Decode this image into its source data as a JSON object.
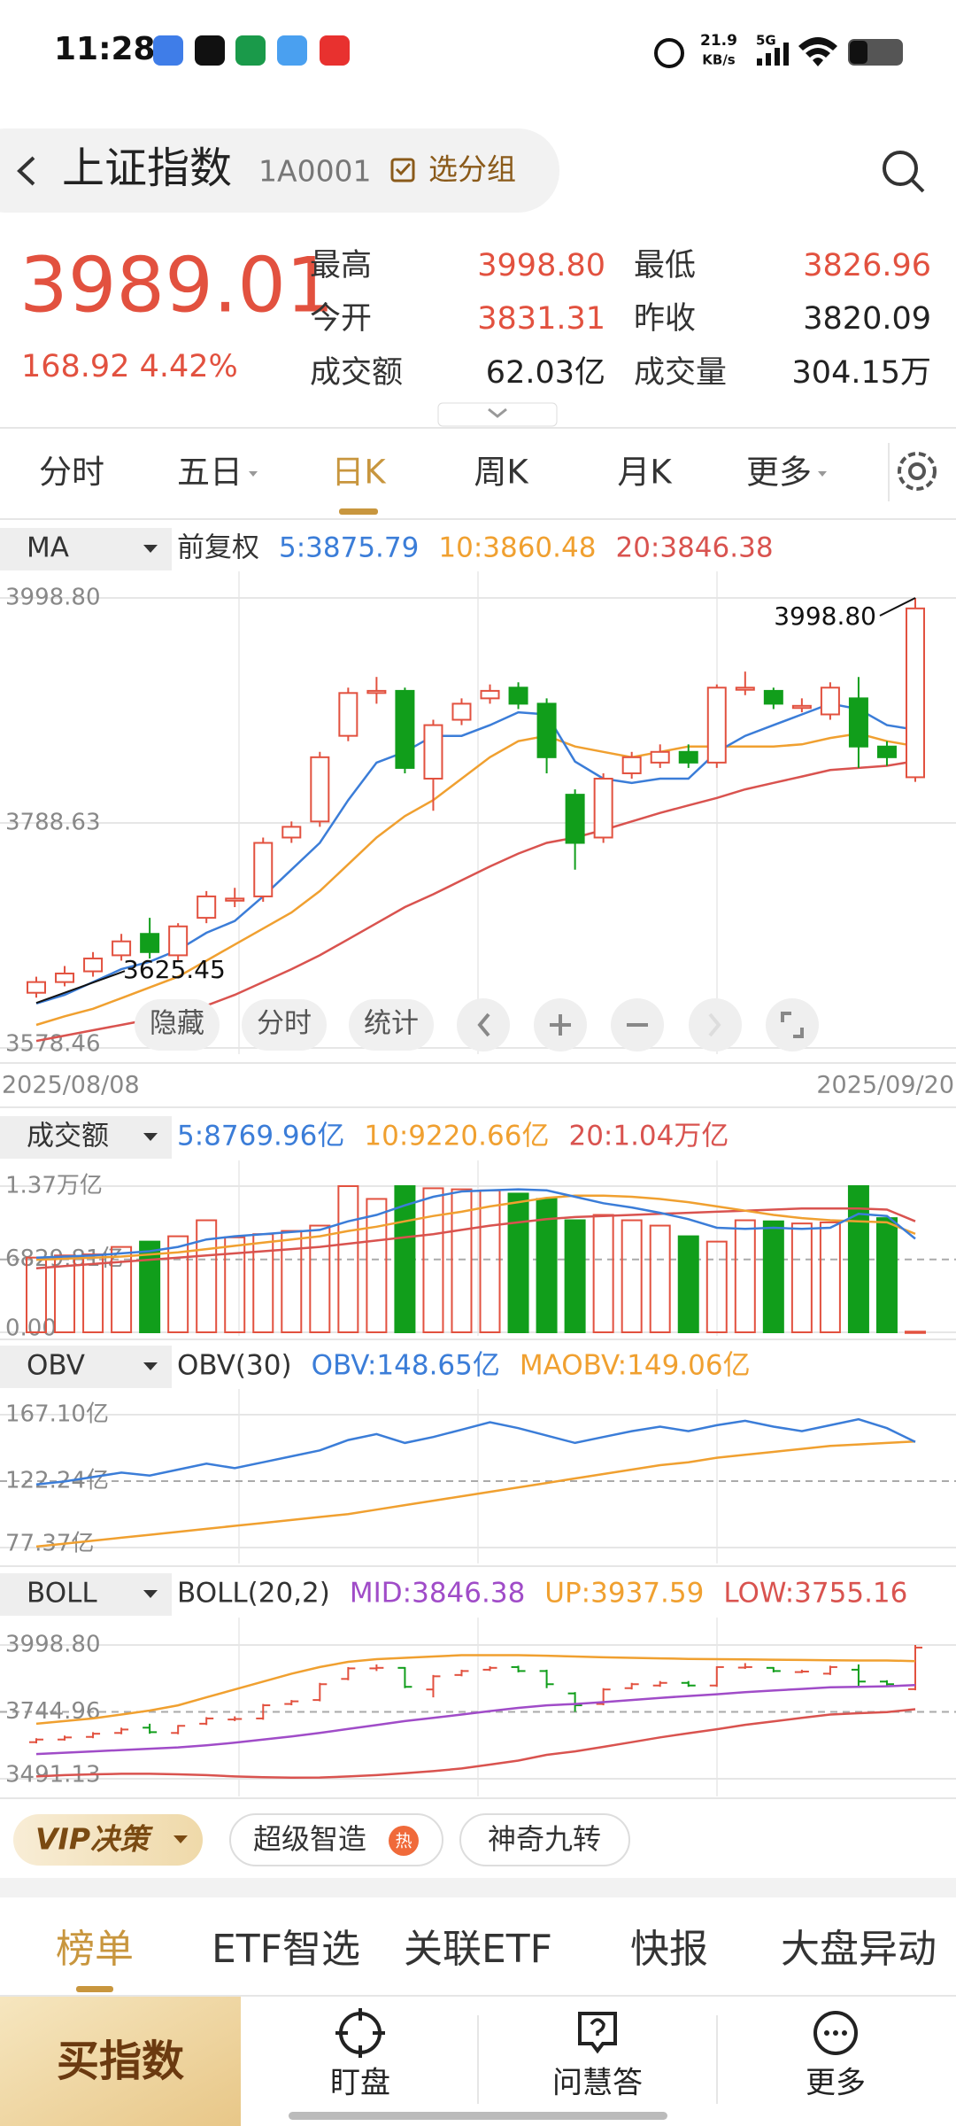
{
  "status": {
    "time": "11:28",
    "speed": "21.9",
    "speed_unit": "KB/s",
    "network": "5G"
  },
  "header": {
    "title": "上证指数",
    "code": "1A0001",
    "group": "选分组"
  },
  "quote": {
    "price": "3989.01",
    "change": "168.92 4.42%",
    "stats": [
      {
        "label": "最高",
        "value": "3998.80",
        "color": "#e2513f"
      },
      {
        "label": "最低",
        "value": "3826.96",
        "color": "#e2513f"
      },
      {
        "label": "今开",
        "value": "3831.31",
        "color": "#e2513f"
      },
      {
        "label": "昨收",
        "value": "3820.09",
        "color": "#222222"
      },
      {
        "label": "成交额",
        "value": "62.03亿",
        "color": "#222222"
      },
      {
        "label": "成交量",
        "value": "304.15万",
        "color": "#222222"
      }
    ]
  },
  "tabs": {
    "items": [
      "分时",
      "五日",
      "日K",
      "周K",
      "月K",
      "更多"
    ],
    "active": 2
  },
  "kline": {
    "label": "MA",
    "adjust": "前复权",
    "legend": [
      {
        "text": "5:3875.79",
        "color": "#3b7dd8"
      },
      {
        "text": "10:3860.48",
        "color": "#f0a030"
      },
      {
        "text": "20:3846.38",
        "color": "#d9534f"
      }
    ],
    "ylim": [
      3578.46,
      3998.8
    ],
    "yticks": [
      {
        "value": 3998.8,
        "label": "3998.80"
      },
      {
        "value": 3788.63,
        "label": "3788.63"
      },
      {
        "value": 3578.46,
        "label": "3578.46"
      }
    ],
    "dates": [
      "2025/08/08",
      "2025/09/20"
    ],
    "annotations": {
      "high": "3998.80",
      "low": "3625.45"
    },
    "open": [
      3630,
      3640,
      3650,
      3665,
      3685,
      3665,
      3700,
      3716,
      3720,
      3775,
      3790,
      3870,
      3910,
      3912,
      3830,
      3885,
      3905,
      3915,
      3900,
      3815,
      3775,
      3835,
      3845,
      3855,
      3845,
      3913,
      3912,
      3896,
      3890,
      3905,
      3860,
      3831.31
    ],
    "high": [
      3645,
      3655,
      3668,
      3685,
      3700,
      3695,
      3725,
      3728,
      3775,
      3790,
      3855,
      3915,
      3925,
      3915,
      3885,
      3905,
      3918,
      3920,
      3905,
      3820,
      3835,
      3855,
      3862,
      3862,
      3918,
      3930,
      3915,
      3905,
      3920,
      3925,
      3865,
      3998.8
    ],
    "low": [
      3625.45,
      3636,
      3645,
      3660,
      3662,
      3660,
      3695,
      3710,
      3715,
      3770,
      3785,
      3865,
      3900,
      3835,
      3800,
      3880,
      3900,
      3895,
      3835,
      3745,
      3770,
      3830,
      3840,
      3840,
      3840,
      3908,
      3895,
      3892,
      3885,
      3840,
      3842,
      3826.96
    ],
    "close": [
      3640,
      3648,
      3662,
      3678,
      3668,
      3692,
      3720,
      3718,
      3770,
      3785,
      3850,
      3910,
      3912,
      3840,
      3880,
      3900,
      3912,
      3900,
      3850,
      3770,
      3830,
      3850,
      3855,
      3845,
      3915,
      3915,
      3900,
      3898,
      3915,
      3860,
      3850,
      3989.01
    ],
    "ma5": [
      3620,
      3628,
      3640,
      3652,
      3659,
      3670,
      3686,
      3697,
      3720,
      3745,
      3770,
      3810,
      3845,
      3855,
      3870,
      3870,
      3880,
      3892,
      3890,
      3846,
      3830,
      3826,
      3830,
      3830,
      3855,
      3870,
      3880,
      3890,
      3900,
      3895,
      3880,
      3875.79
    ],
    "ma10": [
      3600,
      3608,
      3615,
      3625,
      3635,
      3645,
      3660,
      3675,
      3690,
      3705,
      3725,
      3750,
      3775,
      3795,
      3810,
      3830,
      3850,
      3865,
      3870,
      3860,
      3855,
      3850,
      3855,
      3860,
      3860,
      3860,
      3860,
      3862,
      3868,
      3872,
      3865,
      3860.48
    ],
    "ma20": [
      3585,
      3590,
      3595,
      3600,
      3605,
      3610,
      3618,
      3628,
      3640,
      3652,
      3665,
      3680,
      3695,
      3710,
      3722,
      3735,
      3748,
      3760,
      3770,
      3775,
      3782,
      3790,
      3798,
      3805,
      3812,
      3820,
      3826,
      3832,
      3838,
      3840,
      3842,
      3846.38
    ]
  },
  "buttons": [
    "隐藏",
    "分时",
    "统计"
  ],
  "volume": {
    "label": "成交额",
    "legend": [
      {
        "text": "5:8769.96亿",
        "color": "#3b7dd8"
      },
      {
        "text": "10:9220.66亿",
        "color": "#f0a030"
      },
      {
        "text": "20:1.04万亿",
        "color": "#d9534f"
      }
    ],
    "ylim": [
      0,
      13700
    ],
    "yticks": [
      {
        "value": 13700,
        "label": "1.37万亿"
      },
      {
        "value": 6829.81,
        "label": "6829.81亿"
      },
      {
        "value": 0,
        "label": "0.00"
      }
    ],
    "values": [
      7000,
      7200,
      7300,
      8000,
      8500,
      9000,
      10500,
      8900,
      9200,
      9500,
      10000,
      13700,
      12500,
      13700,
      13500,
      13400,
      13300,
      13000,
      12500,
      10500,
      11000,
      10500,
      10000,
      9000,
      8500,
      10500,
      10400,
      10200,
      10300,
      13700,
      10700,
      62.03
    ],
    "ma5": [
      7000,
      7100,
      7200,
      7400,
      7600,
      8000,
      8700,
      9000,
      9200,
      9400,
      9600,
      10400,
      11000,
      11900,
      12700,
      13200,
      13300,
      13400,
      13300,
      12700,
      12100,
      11700,
      11200,
      10600,
      9800,
      9700,
      9800,
      9700,
      9800,
      11100,
      10900,
      8769.96
    ],
    "ma10": [
      6800,
      6900,
      7000,
      7100,
      7300,
      7500,
      7800,
      8100,
      8400,
      8700,
      9000,
      9500,
      9900,
      10400,
      10900,
      11300,
      11800,
      12200,
      12600,
      12800,
      12800,
      12700,
      12500,
      12200,
      11800,
      11400,
      11000,
      10700,
      10500,
      10400,
      10300,
      9220.66
    ],
    "ma20": [
      6000,
      6200,
      6400,
      6600,
      6800,
      7000,
      7200,
      7400,
      7600,
      7800,
      8000,
      8300,
      8600,
      8900,
      9200,
      9600,
      10000,
      10300,
      10600,
      10800,
      10900,
      11000,
      11100,
      11200,
      11300,
      11400,
      11500,
      11600,
      11600,
      11600,
      11500,
      10400
    ]
  },
  "obv": {
    "label": "OBV",
    "name": "OBV(30)",
    "legend": [
      {
        "text": "OBV:148.65亿",
        "color": "#3b7dd8"
      },
      {
        "text": "MAOBV:149.06亿",
        "color": "#f0a030"
      }
    ],
    "ylim": [
      77.37,
      167.1
    ],
    "yticks": [
      {
        "value": 167.1,
        "label": "167.10亿"
      },
      {
        "value": 122.24,
        "label": "122.24亿"
      },
      {
        "value": 77.37,
        "label": "77.37亿"
      }
    ],
    "obv": [
      120,
      122,
      125,
      128,
      126,
      130,
      134,
      131,
      135,
      139,
      143,
      150,
      154,
      148,
      152,
      157,
      162,
      158,
      153,
      148,
      152,
      156,
      159,
      156,
      160,
      163,
      159,
      156,
      160,
      164,
      158,
      148.65
    ],
    "maobv": [
      78,
      80,
      82,
      84,
      86,
      88,
      90,
      92,
      94,
      96,
      98,
      100,
      103,
      106,
      109,
      112,
      115,
      118,
      121,
      124,
      127,
      130,
      133,
      135,
      138,
      140,
      142,
      144,
      146,
      147,
      148,
      149.06
    ]
  },
  "boll": {
    "label": "BOLL",
    "name": "BOLL(20,2)",
    "legend": [
      {
        "text": "MID:3846.38",
        "color": "#a04cc8"
      },
      {
        "text": "UP:3937.59",
        "color": "#f0a030"
      },
      {
        "text": "LOW:3755.16",
        "color": "#d9534f"
      }
    ],
    "ylim": [
      3491.13,
      3998.8
    ],
    "yticks": [
      {
        "value": 3998.8,
        "label": "3998.80"
      },
      {
        "value": 3744.96,
        "label": "3744.96"
      },
      {
        "value": 3491.13,
        "label": "3491.13"
      }
    ],
    "mid": [
      3585,
      3590,
      3595,
      3600,
      3605,
      3610,
      3618,
      3628,
      3640,
      3652,
      3665,
      3680,
      3695,
      3710,
      3722,
      3735,
      3748,
      3760,
      3770,
      3775,
      3782,
      3790,
      3798,
      3805,
      3812,
      3820,
      3826,
      3832,
      3838,
      3840,
      3842,
      3846.38
    ],
    "up": [
      3700,
      3710,
      3720,
      3735,
      3750,
      3770,
      3800,
      3830,
      3860,
      3890,
      3915,
      3935,
      3945,
      3950,
      3955,
      3960,
      3960,
      3960,
      3958,
      3955,
      3952,
      3950,
      3948,
      3946,
      3945,
      3944,
      3943,
      3942,
      3941,
      3940,
      3940,
      3937.59
    ],
    "low": [
      3500,
      3505,
      3508,
      3510,
      3510,
      3508,
      3505,
      3500,
      3497,
      3495,
      3496,
      3500,
      3505,
      3512,
      3520,
      3530,
      3545,
      3560,
      3582,
      3595,
      3612,
      3630,
      3648,
      3664,
      3679,
      3696,
      3709,
      3722,
      3735,
      3740,
      3744,
      3755.16
    ]
  },
  "chips": {
    "items": [
      "VIP决策",
      "超级智造",
      "神奇九转"
    ],
    "hot": "热"
  },
  "news_tabs": {
    "items": [
      "榜单",
      "ETF智选",
      "关联ETF",
      "快报",
      "大盘异动"
    ],
    "active": 0
  },
  "bottom": {
    "buy": "买指数",
    "nav": [
      "盯盘",
      "问慧答",
      "更多"
    ]
  }
}
